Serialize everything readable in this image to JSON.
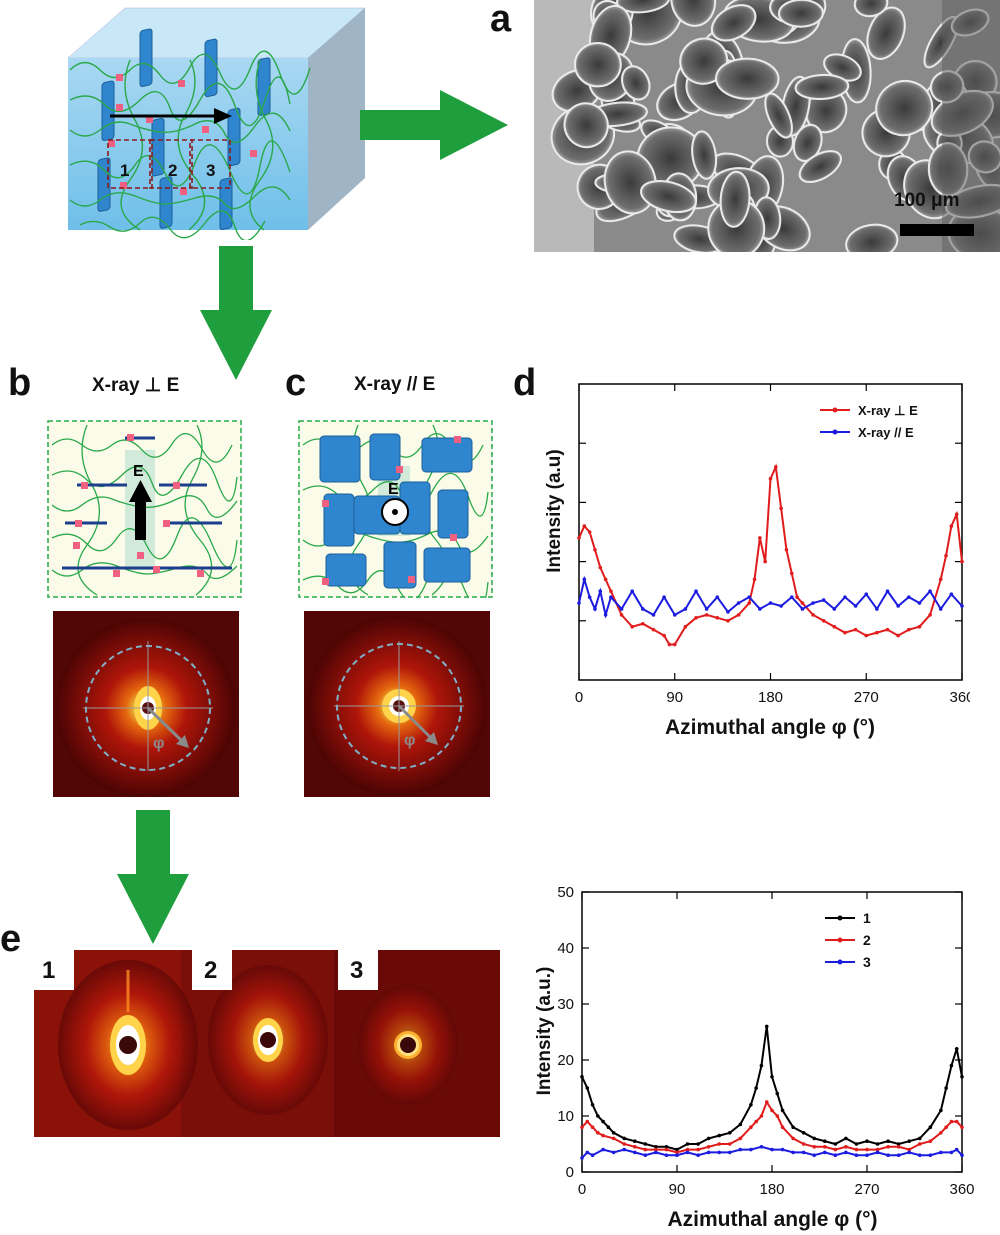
{
  "panels": {
    "a": {
      "letter": "a",
      "scale_bar": "100 μm"
    },
    "b": {
      "letter": "b",
      "title": "X-ray ⊥ E",
      "field_label": "E",
      "angle_symbol": "φ"
    },
    "c": {
      "letter": "c",
      "title": "X-ray // E",
      "field_label": "E",
      "angle_symbol": "φ"
    },
    "d": {
      "letter": "d"
    },
    "e": {
      "letter": "e",
      "region_labels": [
        "1",
        "2",
        "3"
      ]
    }
  },
  "schematic": {
    "region_labels": [
      "1",
      "2",
      "3"
    ]
  },
  "colors": {
    "arrow_green": "#1e9e3c",
    "red": "#e01c1c",
    "blue": "#1c1ce0",
    "black": "#000000",
    "box_blue": "#3a8fd6",
    "chain_green": "#2aa84a",
    "marker_pink": "#f06080"
  },
  "chart_data": [
    {
      "type": "line",
      "title": "",
      "xlabel": "Azimuthal angle φ (°)",
      "ylabel": "Intensity (a.u)",
      "xlim": [
        0,
        360
      ],
      "x_ticks": [
        "0",
        "90",
        "180",
        "270",
        "360"
      ],
      "y_ticks_labeled": false,
      "legend_position": "top-right",
      "series": [
        {
          "name": "X-ray ⊥ E",
          "color": "#e01c1c",
          "x": [
            0,
            5,
            10,
            15,
            20,
            25,
            30,
            40,
            50,
            60,
            70,
            80,
            85,
            90,
            100,
            110,
            120,
            130,
            140,
            150,
            160,
            165,
            170,
            175,
            180,
            185,
            190,
            195,
            200,
            205,
            210,
            220,
            230,
            240,
            250,
            260,
            270,
            280,
            290,
            300,
            310,
            320,
            330,
            340,
            345,
            350,
            355,
            360
          ],
          "y": [
            0.48,
            0.52,
            0.5,
            0.44,
            0.38,
            0.34,
            0.3,
            0.22,
            0.18,
            0.19,
            0.17,
            0.15,
            0.12,
            0.12,
            0.18,
            0.21,
            0.22,
            0.21,
            0.2,
            0.22,
            0.26,
            0.34,
            0.48,
            0.4,
            0.68,
            0.72,
            0.58,
            0.44,
            0.36,
            0.28,
            0.26,
            0.22,
            0.2,
            0.18,
            0.16,
            0.17,
            0.15,
            0.16,
            0.17,
            0.15,
            0.17,
            0.18,
            0.22,
            0.34,
            0.42,
            0.52,
            0.56,
            0.4
          ]
        },
        {
          "name": "X-ray // E",
          "color": "#1c1ce0",
          "x": [
            0,
            5,
            10,
            15,
            20,
            25,
            30,
            40,
            50,
            60,
            70,
            80,
            90,
            100,
            110,
            120,
            130,
            140,
            150,
            160,
            170,
            180,
            190,
            200,
            210,
            220,
            230,
            240,
            250,
            260,
            270,
            280,
            290,
            300,
            310,
            320,
            330,
            340,
            350,
            360
          ],
          "y": [
            0.26,
            0.34,
            0.28,
            0.24,
            0.3,
            0.22,
            0.28,
            0.24,
            0.3,
            0.24,
            0.22,
            0.28,
            0.22,
            0.24,
            0.3,
            0.24,
            0.28,
            0.23,
            0.26,
            0.28,
            0.24,
            0.26,
            0.25,
            0.28,
            0.24,
            0.26,
            0.27,
            0.24,
            0.28,
            0.25,
            0.29,
            0.24,
            0.3,
            0.25,
            0.28,
            0.26,
            0.3,
            0.24,
            0.29,
            0.25
          ]
        }
      ]
    },
    {
      "type": "line",
      "title": "",
      "xlabel": "Azimuthal angle φ (°)",
      "ylabel": "Intensity (a.u.)",
      "xlim": [
        0,
        360
      ],
      "ylim": [
        0,
        50
      ],
      "x_ticks": [
        "0",
        "90",
        "180",
        "270",
        "360"
      ],
      "y_ticks": [
        "0",
        "10",
        "20",
        "30",
        "40",
        "50"
      ],
      "legend_position": "top-right",
      "series": [
        {
          "name": "1",
          "color": "#000000",
          "x": [
            0,
            5,
            10,
            15,
            20,
            25,
            30,
            40,
            50,
            60,
            70,
            80,
            90,
            100,
            110,
            120,
            130,
            140,
            150,
            160,
            165,
            170,
            175,
            180,
            185,
            190,
            200,
            210,
            220,
            230,
            240,
            250,
            260,
            270,
            280,
            290,
            300,
            310,
            320,
            330,
            340,
            345,
            350,
            355,
            360
          ],
          "y": [
            17,
            15,
            12,
            10,
            9,
            8,
            7,
            6,
            5.5,
            5,
            4.5,
            4.5,
            4,
            5,
            5,
            6,
            6.5,
            7,
            8.5,
            12,
            15,
            19,
            26,
            17,
            14,
            11,
            8,
            7,
            6,
            5.5,
            5,
            6,
            5,
            5.5,
            5,
            5.5,
            5,
            5.5,
            6,
            8,
            11,
            15,
            19,
            22,
            17
          ]
        },
        {
          "name": "2",
          "color": "#e01c1c",
          "x": [
            0,
            5,
            10,
            15,
            20,
            30,
            40,
            50,
            60,
            70,
            80,
            90,
            100,
            110,
            120,
            130,
            140,
            150,
            160,
            165,
            170,
            175,
            180,
            185,
            190,
            200,
            210,
            220,
            230,
            240,
            250,
            260,
            270,
            280,
            290,
            300,
            310,
            320,
            330,
            340,
            345,
            350,
            355,
            360
          ],
          "y": [
            8,
            9,
            8,
            7,
            6.5,
            6,
            5,
            4.5,
            4,
            4,
            4,
            3.5,
            4,
            4,
            4.5,
            5,
            5,
            6,
            8,
            9,
            10,
            12.5,
            11,
            10,
            8,
            6,
            5,
            4.5,
            4.5,
            4,
            4.5,
            4,
            4,
            4,
            4.5,
            4.5,
            4,
            5,
            5.5,
            7,
            8,
            9,
            9,
            8
          ]
        },
        {
          "name": "3",
          "color": "#1c1ce0",
          "x": [
            0,
            5,
            10,
            20,
            30,
            40,
            50,
            60,
            70,
            80,
            90,
            100,
            110,
            120,
            130,
            140,
            150,
            160,
            170,
            180,
            190,
            200,
            210,
            220,
            230,
            240,
            250,
            260,
            270,
            280,
            290,
            300,
            310,
            320,
            330,
            340,
            350,
            355,
            360
          ],
          "y": [
            2.5,
            3.5,
            3,
            4,
            3.5,
            4,
            3.5,
            3,
            3.5,
            3,
            3,
            3.5,
            3,
            3.5,
            3.5,
            3.5,
            4,
            4,
            4.5,
            4,
            4,
            3.5,
            3.5,
            3,
            3.5,
            3,
            3.5,
            3,
            3,
            3.5,
            3,
            3,
            3.5,
            3,
            3,
            3.5,
            3.5,
            4,
            3
          ]
        }
      ]
    }
  ]
}
